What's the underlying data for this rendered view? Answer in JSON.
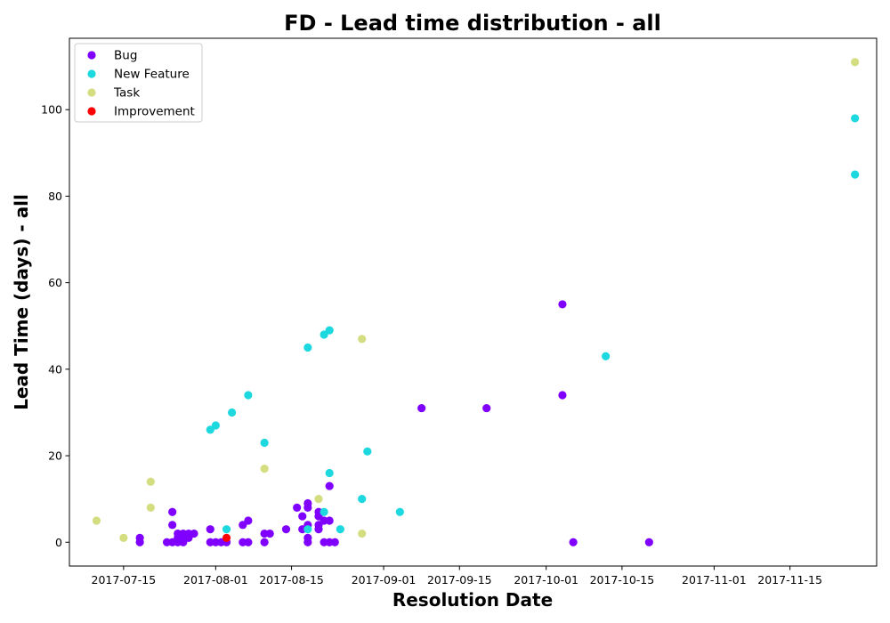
{
  "chart_data": {
    "type": "scatter",
    "title": "FD - Lead time distribution - all",
    "xlabel": "Resolution Date",
    "ylabel": "Lead Time (days) - all",
    "x_axis_type": "date",
    "xlim": [
      "2017-07-05",
      "2017-12-01"
    ],
    "ylim": [
      -5.5,
      116.5
    ],
    "x_ticks": [
      "2017-07-15",
      "2017-08-01",
      "2017-08-15",
      "2017-09-01",
      "2017-09-15",
      "2017-10-01",
      "2017-10-15",
      "2017-11-01",
      "2017-11-15"
    ],
    "y_ticks": [
      0,
      20,
      40,
      60,
      80,
      100
    ],
    "grid": false,
    "legend_position": "top-left",
    "series": [
      {
        "name": "Bug",
        "color": "#8000ff",
        "points": [
          [
            "2017-07-18",
            1
          ],
          [
            "2017-07-18",
            0
          ],
          [
            "2017-07-23",
            0
          ],
          [
            "2017-07-24",
            0
          ],
          [
            "2017-07-24",
            4
          ],
          [
            "2017-07-24",
            7
          ],
          [
            "2017-07-25",
            1
          ],
          [
            "2017-07-25",
            0
          ],
          [
            "2017-07-25",
            2
          ],
          [
            "2017-07-26",
            0
          ],
          [
            "2017-07-26",
            2
          ],
          [
            "2017-07-26",
            1
          ],
          [
            "2017-07-27",
            2
          ],
          [
            "2017-07-27",
            1
          ],
          [
            "2017-07-28",
            2
          ],
          [
            "2017-07-31",
            3
          ],
          [
            "2017-07-31",
            0
          ],
          [
            "2017-08-01",
            0
          ],
          [
            "2017-08-02",
            0
          ],
          [
            "2017-08-03",
            0
          ],
          [
            "2017-08-06",
            4
          ],
          [
            "2017-08-06",
            0
          ],
          [
            "2017-08-07",
            5
          ],
          [
            "2017-08-07",
            0
          ],
          [
            "2017-08-10",
            2
          ],
          [
            "2017-08-10",
            0
          ],
          [
            "2017-08-11",
            2
          ],
          [
            "2017-08-14",
            3
          ],
          [
            "2017-08-16",
            8
          ],
          [
            "2017-08-17",
            6
          ],
          [
            "2017-08-17",
            3
          ],
          [
            "2017-08-18",
            9
          ],
          [
            "2017-08-18",
            8
          ],
          [
            "2017-08-18",
            4
          ],
          [
            "2017-08-18",
            1
          ],
          [
            "2017-08-18",
            0
          ],
          [
            "2017-08-20",
            7
          ],
          [
            "2017-08-20",
            6
          ],
          [
            "2017-08-20",
            4
          ],
          [
            "2017-08-20",
            3
          ],
          [
            "2017-08-21",
            5
          ],
          [
            "2017-08-21",
            0
          ],
          [
            "2017-08-22",
            13
          ],
          [
            "2017-08-22",
            5
          ],
          [
            "2017-08-22",
            0
          ],
          [
            "2017-08-23",
            0
          ],
          [
            "2017-09-08",
            31
          ],
          [
            "2017-09-20",
            31
          ],
          [
            "2017-10-04",
            55
          ],
          [
            "2017-10-04",
            34
          ],
          [
            "2017-10-06",
            0
          ],
          [
            "2017-10-20",
            0
          ]
        ]
      },
      {
        "name": "New Feature",
        "color": "#1ed8e0",
        "points": [
          [
            "2017-07-31",
            26
          ],
          [
            "2017-08-01",
            27
          ],
          [
            "2017-08-03",
            3
          ],
          [
            "2017-08-04",
            30
          ],
          [
            "2017-08-07",
            34
          ],
          [
            "2017-08-10",
            23
          ],
          [
            "2017-08-18",
            45
          ],
          [
            "2017-08-18",
            3
          ],
          [
            "2017-08-21",
            48
          ],
          [
            "2017-08-21",
            7
          ],
          [
            "2017-08-22",
            49
          ],
          [
            "2017-08-22",
            16
          ],
          [
            "2017-08-24",
            3
          ],
          [
            "2017-08-28",
            10
          ],
          [
            "2017-08-29",
            21
          ],
          [
            "2017-09-04",
            7
          ],
          [
            "2017-10-12",
            43
          ],
          [
            "2017-11-27",
            98
          ],
          [
            "2017-11-27",
            85
          ]
        ]
      },
      {
        "name": "Task",
        "color": "#d4dd80",
        "points": [
          [
            "2017-07-10",
            5
          ],
          [
            "2017-07-15",
            1
          ],
          [
            "2017-07-20",
            14
          ],
          [
            "2017-07-20",
            8
          ],
          [
            "2017-08-10",
            17
          ],
          [
            "2017-08-20",
            10
          ],
          [
            "2017-08-28",
            47
          ],
          [
            "2017-08-28",
            2
          ],
          [
            "2017-11-27",
            111
          ]
        ]
      },
      {
        "name": "Improvement",
        "color": "#ff0000",
        "points": [
          [
            "2017-08-03",
            1
          ]
        ]
      }
    ]
  }
}
